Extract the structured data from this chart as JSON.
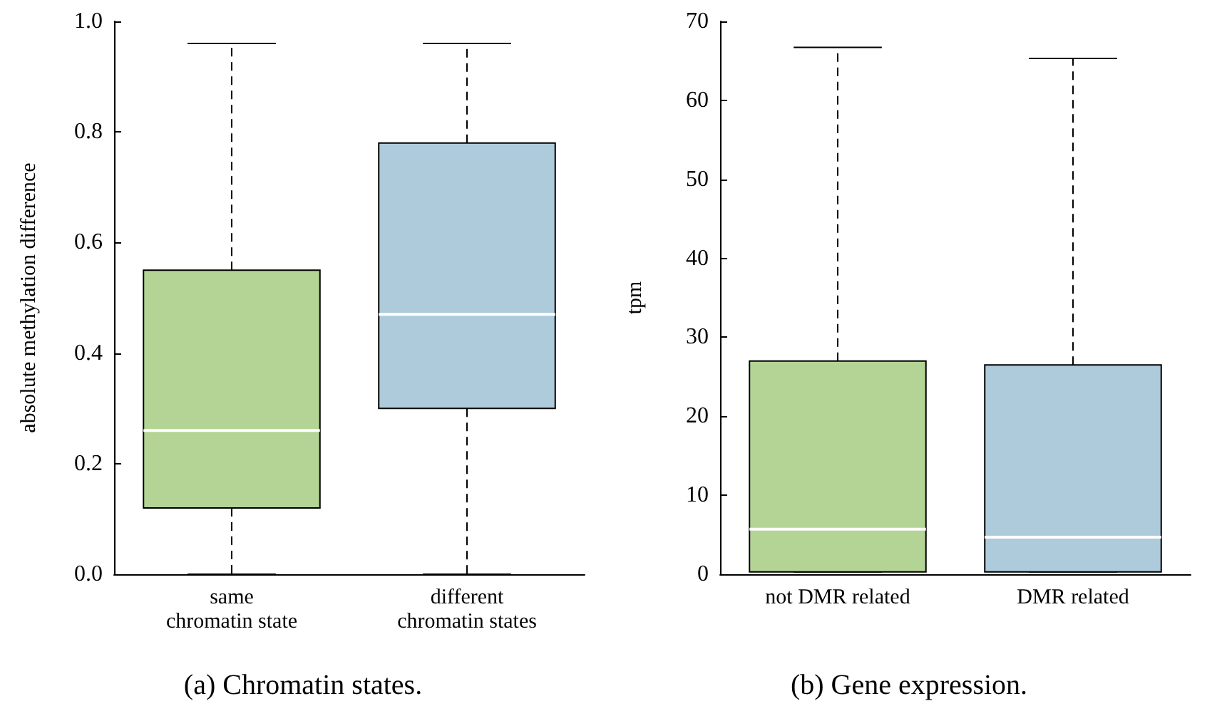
{
  "chart_data": [
    {
      "type": "box",
      "categories": [
        "same\nchromatin state",
        "different\nchromatin states"
      ],
      "ylabel": "absolute methylation difference",
      "colors": [
        "#b3d495",
        "#aecbdc"
      ],
      "boxes": [
        {
          "low": 0,
          "q1": 0.12,
          "median": 0.26,
          "q3": 0.55,
          "high": 0.96
        },
        {
          "low": 0,
          "q1": 0.3,
          "median": 0.47,
          "q3": 0.78,
          "high": 0.96
        }
      ],
      "ylim": [
        0,
        1
      ],
      "yticks": [
        {
          "value": 0,
          "label": "0.0"
        },
        {
          "value": 0.2,
          "label": "0.2"
        },
        {
          "value": 0.4,
          "label": "0.4"
        },
        {
          "value": 0.6,
          "label": "0.6"
        },
        {
          "value": 0.8,
          "label": "0.8"
        },
        {
          "value": 1,
          "label": "1.0"
        }
      ],
      "annotations": [
        "(a) Chromatin states."
      ]
    },
    {
      "type": "box",
      "categories": [
        "not DMR related",
        "DMR related"
      ],
      "ylabel": "tpm",
      "colors": [
        "#b3d495",
        "#aecbdc"
      ],
      "boxes": [
        {
          "low": 0.3,
          "q1": 0.3,
          "median": 5.7,
          "q3": 27,
          "high": 66.7
        },
        {
          "low": 0.3,
          "q1": 0.3,
          "median": 4.7,
          "q3": 26.5,
          "high": 65.3
        }
      ],
      "ylim": [
        0,
        70
      ],
      "yticks": [
        0,
        10,
        20,
        30,
        40,
        50,
        60,
        70
      ],
      "annotations": [
        "(b) Gene expression."
      ]
    }
  ]
}
